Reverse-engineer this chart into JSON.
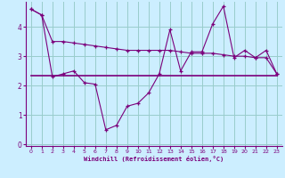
{
  "xlabel": "Windchill (Refroidissement éolien,°C)",
  "bg_color": "#cceeff",
  "line_color": "#7b007b",
  "grid_color": "#99cccc",
  "hours": [
    0,
    1,
    2,
    3,
    4,
    5,
    6,
    7,
    8,
    9,
    10,
    11,
    12,
    13,
    14,
    15,
    16,
    17,
    18,
    19,
    20,
    21,
    22,
    23
  ],
  "windchill": [
    4.6,
    4.4,
    3.5,
    3.5,
    3.45,
    3.4,
    3.35,
    3.3,
    3.25,
    3.2,
    3.2,
    3.2,
    3.2,
    3.2,
    3.15,
    3.1,
    3.1,
    3.1,
    3.05,
    3.0,
    3.0,
    2.95,
    2.95,
    2.4
  ],
  "actual": [
    4.6,
    4.4,
    2.3,
    2.4,
    2.5,
    2.1,
    2.05,
    0.5,
    0.65,
    1.3,
    1.4,
    1.75,
    2.4,
    3.9,
    2.5,
    3.15,
    3.15,
    4.1,
    4.7,
    2.95,
    3.2,
    2.95,
    3.2,
    2.4
  ],
  "flat_line": [
    2.35,
    2.35,
    2.35,
    2.35,
    2.35,
    2.35,
    2.35,
    2.35,
    2.35,
    2.35,
    2.35,
    2.35,
    2.35,
    2.35,
    2.35,
    2.35,
    2.35,
    2.35,
    2.35,
    2.35,
    2.35,
    2.35,
    2.35,
    2.35
  ],
  "ylim": [
    -0.05,
    4.85
  ],
  "yticks": [
    0,
    1,
    2,
    3,
    4
  ],
  "xlim": [
    -0.5,
    23.5
  ]
}
